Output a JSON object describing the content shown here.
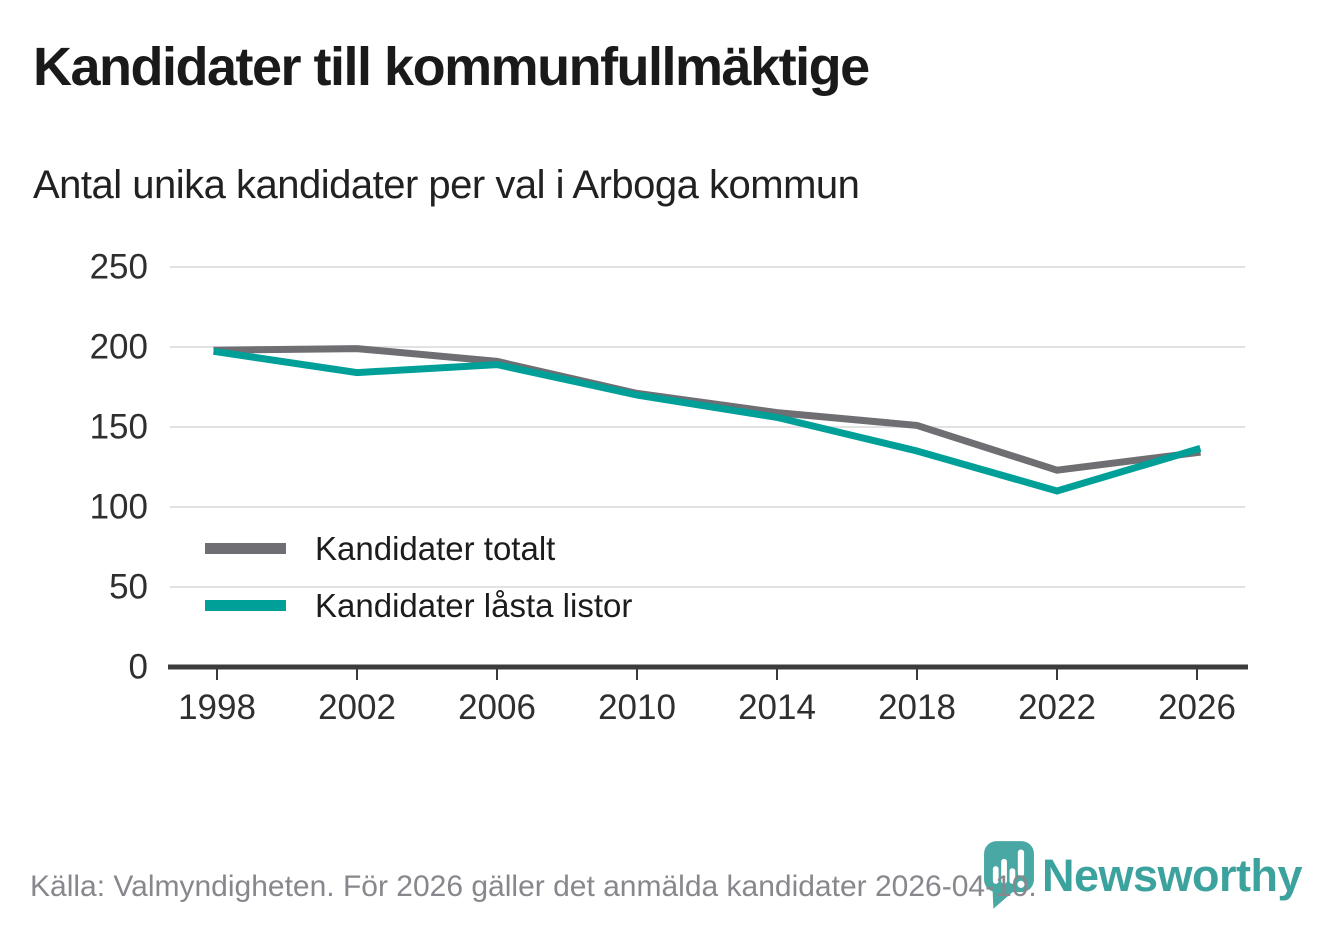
{
  "title": "Kandidater till kommunfullmäktige",
  "subtitle": "Antal unika kandidater per val i Arboga kommun",
  "footer": {
    "source_note": "Källa: Valmyndigheten. För 2026 gäller det anmälda kandidater 2026-04-10."
  },
  "logo": {
    "text": "Newsworthy",
    "icon": "newsworthy-pin-barchart-icon",
    "color": "#3ca29d"
  },
  "colors": {
    "background": "#ffffff",
    "axis": "#3b3b3b",
    "gridline": "#e2e2e2",
    "tick_label": "#2f2f2f",
    "footer_text": "#87878d",
    "series_total": "#6e6e73",
    "series_locked": "#00a099"
  },
  "legend": {
    "items": [
      {
        "label": "Kandidater totalt",
        "color": "#6e6e73"
      },
      {
        "label": "Kandidater låsta listor",
        "color": "#00a099"
      }
    ]
  },
  "chart_data": {
    "type": "line",
    "title": "Kandidater till kommunfullmäktige",
    "subtitle": "Antal unika kandidater per val i Arboga kommun",
    "x": [
      1998,
      2002,
      2006,
      2010,
      2014,
      2018,
      2022,
      2026
    ],
    "xticklabels": [
      "1998",
      "2002",
      "2006",
      "2010",
      "2014",
      "2018",
      "2022",
      "2026"
    ],
    "series": [
      {
        "name": "Kandidater totalt",
        "color": "#6e6e73",
        "values": [
          198,
          199,
          191,
          171,
          159,
          151,
          123,
          134
        ]
      },
      {
        "name": "Kandidater låsta listor",
        "color": "#00a099",
        "values": [
          197,
          184,
          189,
          170,
          156,
          135,
          110,
          136
        ]
      }
    ],
    "xlabel": "",
    "ylabel": "",
    "ylim": [
      0,
      250
    ],
    "yticks": [
      0,
      50,
      100,
      150,
      200,
      250
    ],
    "grid": "horizontal",
    "legend_position": "inside-bottom-left"
  }
}
